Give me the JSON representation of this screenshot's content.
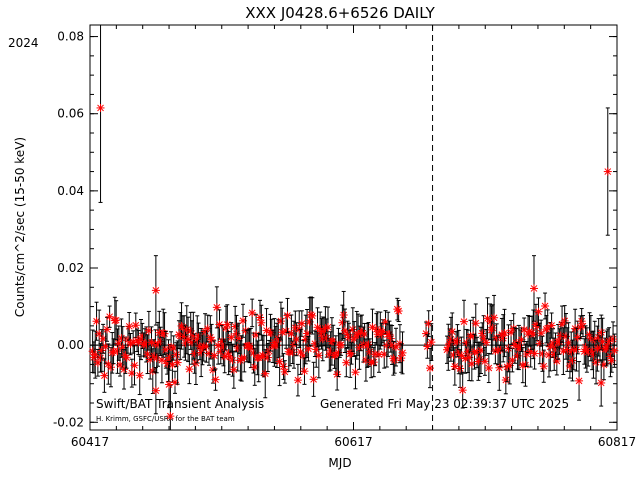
{
  "chart_data": {
    "type": "scatter",
    "title": "XXX J0428.6+6526 DAILY",
    "year_label": "2024",
    "xlabel": "MJD",
    "ylabel": "Counts/cm^2/sec (15-50 keV)",
    "xlim": [
      60417,
      60817
    ],
    "ylim": [
      -0.022,
      0.083
    ],
    "x_ticks": [
      60417,
      60617,
      60817
    ],
    "x_tick_labels": [
      "60417",
      "60617",
      "60817"
    ],
    "y_ticks": [
      -0.02,
      0.0,
      0.02,
      0.04,
      0.06,
      0.08
    ],
    "y_tick_labels": [
      "-0.02",
      "0.00",
      "0.02",
      "0.04",
      "0.06",
      "0.08"
    ],
    "zero_line": 0.0,
    "vertical_marker_mjd": 60677,
    "grid": false,
    "marker": "asterisk",
    "marker_color": "#ff0000",
    "errorbar_color": "#000000",
    "annotations": {
      "left": "Swift/BAT Transient Analysis",
      "credit": "H. Krimm, GSFC/USRA for the BAT team",
      "generated": "Generated Fri May 23 02:39:37 UTC 2025"
    },
    "highlight_points": [
      {
        "x": 60425,
        "y": 0.0615,
        "err": 0.0245
      },
      {
        "x": 60810,
        "y": 0.045,
        "err": 0.0165
      },
      {
        "x": 60467,
        "y": 0.0142,
        "err": 0.009
      },
      {
        "x": 60754,
        "y": 0.0147,
        "err": 0.0085
      },
      {
        "x": 60478,
        "y": -0.0184,
        "err": 0.008
      },
      {
        "x": 60467,
        "y": -0.0118,
        "err": 0.006
      },
      {
        "x": 60477,
        "y": -0.0102,
        "err": 0.006
      },
      {
        "x": 60805,
        "y": -0.0098,
        "err": 0.006
      }
    ],
    "series": [
      {
        "values_seed": 20240417,
        "n_points": 400,
        "x_start": 60417,
        "x_end": 60817,
        "typical_scatter": 0.0035,
        "typical_err": 0.0045,
        "gaps": [
          [
            60655,
            60672
          ],
          [
            60677,
            60687
          ]
        ]
      }
    ]
  }
}
